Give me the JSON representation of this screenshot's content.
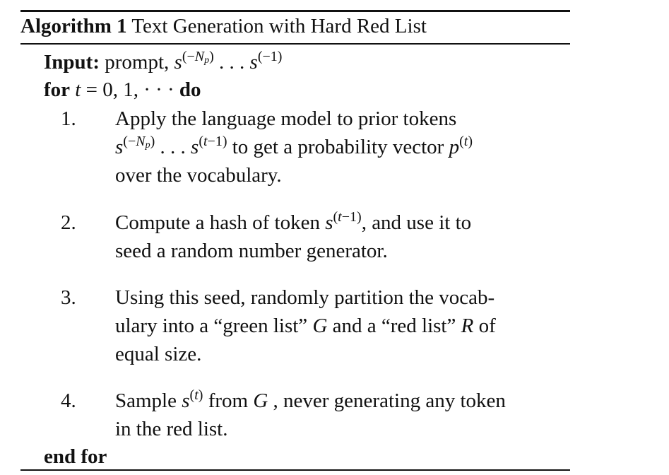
{
  "algorithm": {
    "label": "Algorithm 1",
    "title": "Text Generation with Hard Red List"
  },
  "input": {
    "keyword": "Input:",
    "text": "prompt,"
  },
  "loop": {
    "for_kw": "for",
    "do_kw": "do",
    "range": "= 0, 1, · · ·",
    "end_kw": "end for"
  },
  "steps": [
    {
      "num": "1.",
      "line1": "Apply the language model to prior tokens",
      "line2_suffix": "to get a probability vector",
      "line3": "over the vocabulary."
    },
    {
      "num": "2.",
      "line1_prefix": "Compute a hash of token",
      "line1_suffix": ", and use it to",
      "line2": "seed a random number generator."
    },
    {
      "num": "3.",
      "line1": "Using this seed, randomly partition the vocab-",
      "line2_prefix": "ulary into a “green list”",
      "line2_mid": "and a “red list”",
      "line2_suffix": "of",
      "line3": "equal size."
    },
    {
      "num": "4.",
      "line1_prefix": "Sample",
      "line1_mid": "from",
      "line1_suffix": ", never generating any token",
      "line2": "in the red list."
    }
  ]
}
